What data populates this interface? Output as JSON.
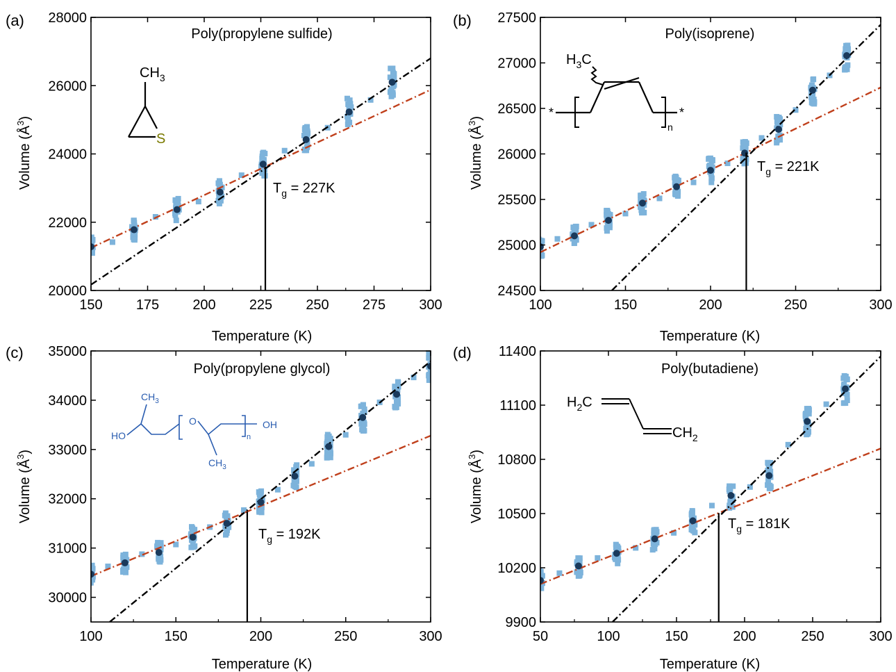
{
  "chart_data": [
    {
      "panel_label": "(a)",
      "title": "Poly(propylene sulfide)",
      "type": "scatter",
      "xlabel": "Temperature (K)",
      "ylabel_main": "Volume (Å",
      "ylabel_sup": "3",
      "ylabel_end": ")",
      "xlim": [
        150,
        300
      ],
      "ylim": [
        20000,
        28000
      ],
      "xticks": [
        150,
        175,
        200,
        225,
        250,
        275,
        300
      ],
      "yticks": [
        20000,
        22000,
        24000,
        26000,
        28000
      ],
      "tg_label_main": "T",
      "tg_label_sub": "g",
      "tg_label_rest": " = 227K",
      "tg": 227,
      "glass_fit": {
        "x": [
          150,
          300
        ],
        "y": [
          21250,
          25880
        ]
      },
      "melt_fit": {
        "x": [
          150,
          300
        ],
        "y": [
          20170,
          26800
        ]
      },
      "series": [
        {
          "values": [
            [
              150,
              21280
            ],
            [
              169,
              21780
            ],
            [
              188,
              22370
            ],
            [
              207,
              22880
            ],
            [
              226,
              23700
            ],
            [
              245,
              24420
            ],
            [
              264,
              25230
            ],
            [
              283,
              26100
            ]
          ]
        }
      ],
      "molecule": {
        "labels": [
          "CH",
          "3",
          "S"
        ]
      }
    },
    {
      "panel_label": "(b)",
      "title": "Poly(isoprene)",
      "type": "scatter",
      "xlabel": "Temperature (K)",
      "ylabel_main": "Volume (Å",
      "ylabel_sup": "3",
      "ylabel_end": ")",
      "xlim": [
        100,
        300
      ],
      "ylim": [
        24500,
        27500
      ],
      "xticks": [
        100,
        150,
        200,
        250,
        300
      ],
      "yticks": [
        24500,
        25000,
        25500,
        26000,
        26500,
        27000,
        27500
      ],
      "tg_label_main": "T",
      "tg_label_sub": "g",
      "tg_label_rest": " = 221K",
      "tg": 221,
      "glass_fit": {
        "x": [
          100,
          300
        ],
        "y": [
          24920,
          26730
        ]
      },
      "melt_fit": {
        "x": [
          142,
          300
        ],
        "y": [
          24500,
          27420
        ]
      },
      "series": [
        {
          "values": [
            [
              100,
              24980
            ],
            [
              120,
              25100
            ],
            [
              140,
              25270
            ],
            [
              160,
              25460
            ],
            [
              180,
              25640
            ],
            [
              200,
              25820
            ],
            [
              220,
              26010
            ],
            [
              240,
              26270
            ],
            [
              260,
              26700
            ],
            [
              280,
              27080
            ]
          ]
        }
      ],
      "molecule": {
        "labels": [
          "H",
          "3",
          "C",
          "*",
          "n",
          "*"
        ]
      }
    },
    {
      "panel_label": "(c)",
      "title": "Poly(propylene glycol)",
      "type": "scatter",
      "xlabel": "Temperature (K)",
      "ylabel_main": "Volume (Å",
      "ylabel_sup": "3",
      "ylabel_end": ")",
      "xlim": [
        100,
        300
      ],
      "ylim": [
        29500,
        35000
      ],
      "xticks": [
        100,
        150,
        200,
        250,
        300
      ],
      "yticks": [
        30000,
        31000,
        32000,
        33000,
        34000,
        35000
      ],
      "tg_label_main": "T",
      "tg_label_sub": "g",
      "tg_label_rest": " = 192K",
      "tg": 192,
      "glass_fit": {
        "x": [
          100,
          300
        ],
        "y": [
          30430,
          33280
        ]
      },
      "melt_fit": {
        "x": [
          111,
          300
        ],
        "y": [
          29500,
          34790
        ]
      },
      "series": [
        {
          "values": [
            [
              100,
              30470
            ],
            [
              120,
              30700
            ],
            [
              140,
              30910
            ],
            [
              160,
              31220
            ],
            [
              180,
              31500
            ],
            [
              200,
              31930
            ],
            [
              220,
              32460
            ],
            [
              240,
              33060
            ],
            [
              260,
              33650
            ],
            [
              280,
              34120
            ],
            [
              300,
              34690
            ]
          ]
        }
      ],
      "molecule": {
        "labels": [
          "CH",
          "3",
          "HO",
          "O",
          "OH",
          "n",
          "CH",
          "3"
        ]
      }
    },
    {
      "panel_label": "(d)",
      "title": "Poly(butadiene)",
      "type": "scatter",
      "xlabel": "Temperature (K)",
      "ylabel_main": "Volume (Å",
      "ylabel_sup": "3",
      "ylabel_end": ")",
      "xlim": [
        50,
        300
      ],
      "ylim": [
        9900,
        11400
      ],
      "xticks": [
        50,
        100,
        150,
        200,
        250,
        300
      ],
      "yticks": [
        9900,
        10200,
        10500,
        10800,
        11100,
        11400
      ],
      "tg_label_main": "T",
      "tg_label_sub": "g",
      "tg_label_rest": " = 181K",
      "tg": 181,
      "glass_fit": {
        "x": [
          50,
          300
        ],
        "y": [
          10110,
          10860
        ]
      },
      "melt_fit": {
        "x": [
          103,
          300
        ],
        "y": [
          9900,
          11370
        ]
      },
      "series": [
        {
          "values": [
            [
              50,
              10130
            ],
            [
              78,
              10210
            ],
            [
              106,
              10280
            ],
            [
              134,
              10360
            ],
            [
              162,
              10460
            ],
            [
              190,
              10600
            ],
            [
              218,
              10710
            ],
            [
              246,
              11010
            ],
            [
              274,
              11190
            ]
          ]
        }
      ],
      "molecule": {
        "labels": [
          "H",
          "2",
          "C",
          "CH",
          "2"
        ]
      }
    }
  ],
  "colors": {
    "scatter": "#7db3db",
    "mean_point": "#1a3a5c",
    "glass_fit": "#c0401c",
    "melt_fit": "#000000",
    "molecule_blue": "#2a5db0",
    "sulfur": "#7a7a00"
  }
}
